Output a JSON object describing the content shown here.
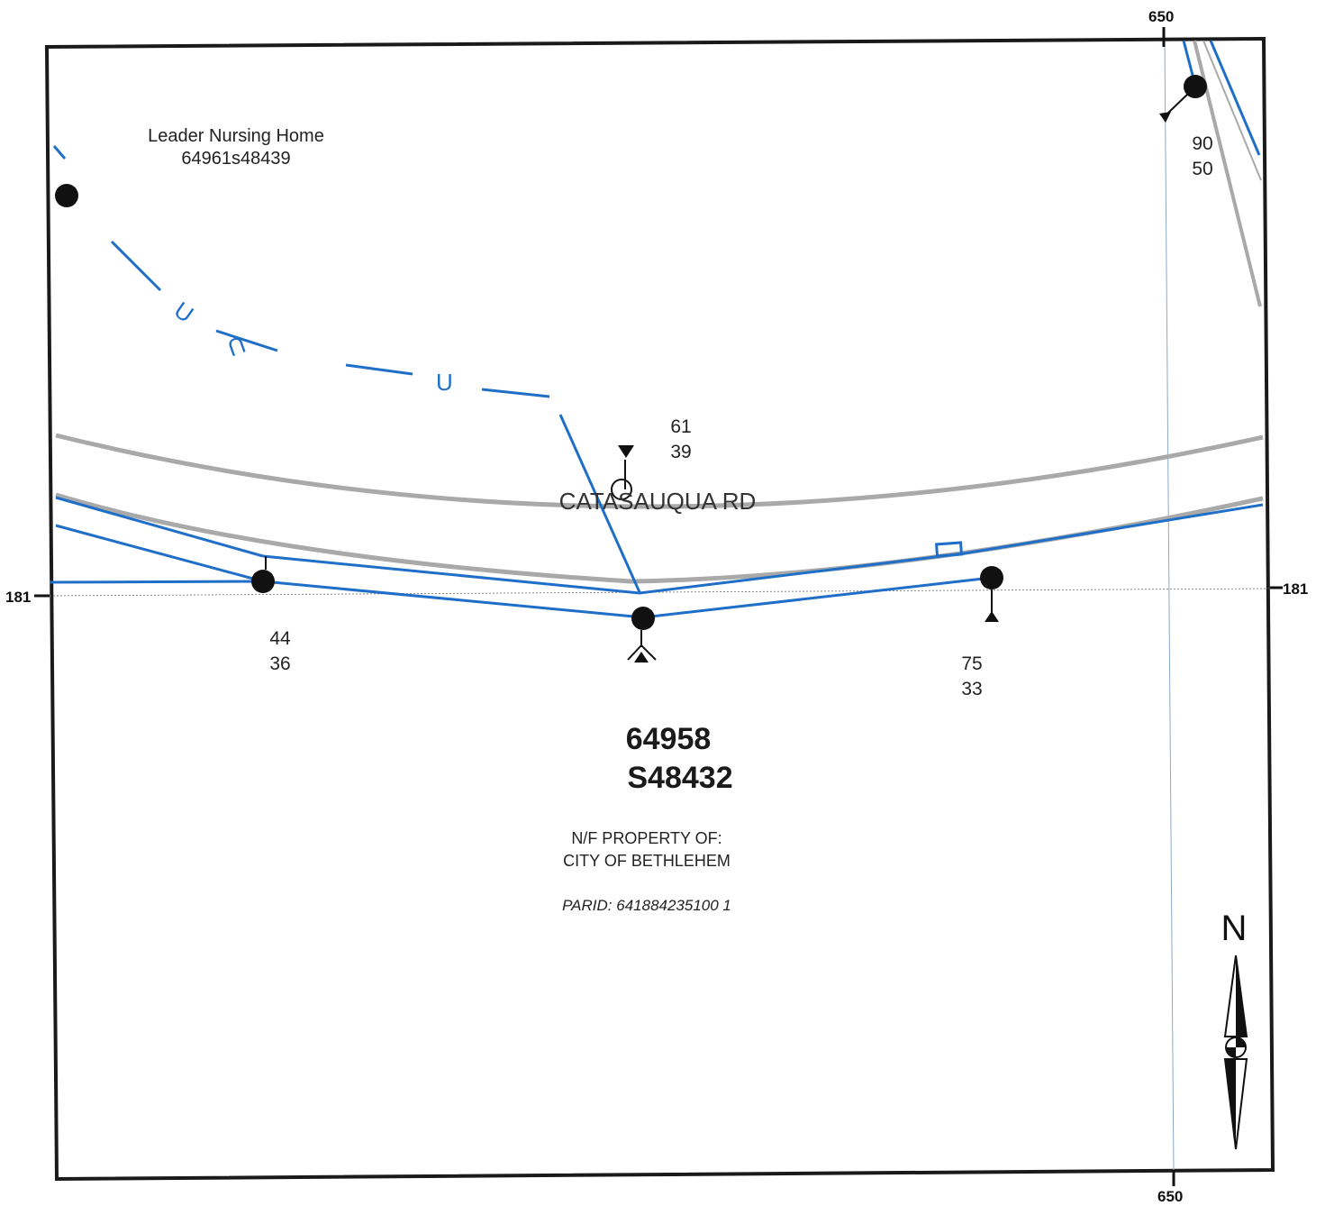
{
  "grid": {
    "top_easting": "650",
    "bottom_easting": "650",
    "left_northing": "181",
    "right_northing": "181"
  },
  "nursing_home": {
    "name": "Leader Nursing Home",
    "id": "64961s48439"
  },
  "road_name": "CATASAUQUA RD",
  "utility_marker": "U",
  "poles": [
    {
      "top": "90",
      "bottom": "50"
    },
    {
      "top": "61",
      "bottom": "39"
    },
    {
      "top": "44",
      "bottom": "36"
    },
    {
      "top": "75",
      "bottom": "33"
    }
  ],
  "parcel": {
    "line1": "64958",
    "line2": "S48432",
    "owner_label": "N/F PROPERTY OF:",
    "owner": "CITY OF BETHLEHEM",
    "parid": "PARID: 641884235100 1"
  },
  "north_label": "N",
  "colors": {
    "utility_line": "#1f6fc9",
    "road_edge": "#a9a9a9",
    "frame": "#1a1a1a",
    "grid_line": "#8aa9c8"
  }
}
